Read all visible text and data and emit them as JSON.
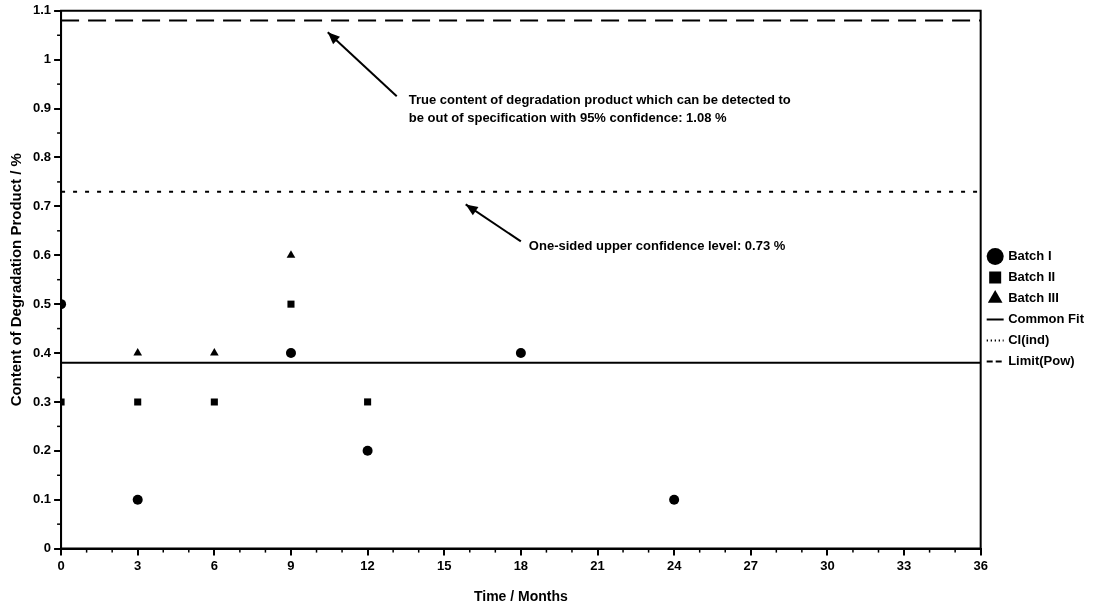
{
  "chart_data": {
    "type": "scatter",
    "xlabel": "Time / Months",
    "ylabel": "Content of Degradation Product / %",
    "xlim": [
      0,
      36
    ],
    "xticks": [
      0,
      3,
      6,
      9,
      12,
      15,
      18,
      21,
      24,
      27,
      30,
      33,
      36
    ],
    "ylim": [
      0,
      1.1
    ],
    "yticks": [
      0,
      0.1,
      0.2,
      0.3,
      0.4,
      0.5,
      0.6,
      0.7,
      0.8,
      0.9,
      1,
      1.1
    ],
    "grid": false,
    "legend": "right",
    "series": [
      {
        "name": "Batch I",
        "type": "scatter",
        "marker": "circle",
        "color": "#000000",
        "x": [
          0,
          3,
          9,
          12,
          18,
          24
        ],
        "values": [
          0.5,
          0.1,
          0.4,
          0.2,
          0.4,
          0.1
        ]
      },
      {
        "name": "Batch II",
        "type": "scatter",
        "marker": "square",
        "color": "#000000",
        "x": [
          0,
          3,
          6,
          9,
          12
        ],
        "values": [
          0.3,
          0.3,
          0.3,
          0.5,
          0.3
        ]
      },
      {
        "name": "Batch III",
        "type": "scatter",
        "marker": "triangle",
        "color": "#000000",
        "x": [
          3,
          6,
          9
        ],
        "values": [
          0.4,
          0.4,
          0.6
        ]
      },
      {
        "name": "Common Fit",
        "type": "line",
        "marker": "none",
        "line_style": "solid",
        "color": "#000000",
        "x": [
          0,
          36
        ],
        "values": [
          0.38,
          0.38
        ]
      },
      {
        "name": "CI(ind)",
        "type": "line",
        "marker": "none",
        "line_style": "dotted",
        "color": "#000000",
        "x": [
          0,
          36
        ],
        "values": [
          0.73,
          0.73
        ]
      },
      {
        "name": "Limit(Pow)",
        "type": "line",
        "marker": "none",
        "line_style": "dashed",
        "color": "#000000",
        "x": [
          0,
          36
        ],
        "values": [
          1.08,
          1.08
        ]
      }
    ],
    "annotations": [
      "True content of degradation product which can be detected to be out of specification with 95% confidence: 1.08 %",
      "One-sided upper confidence level: 0.73 %"
    ]
  }
}
